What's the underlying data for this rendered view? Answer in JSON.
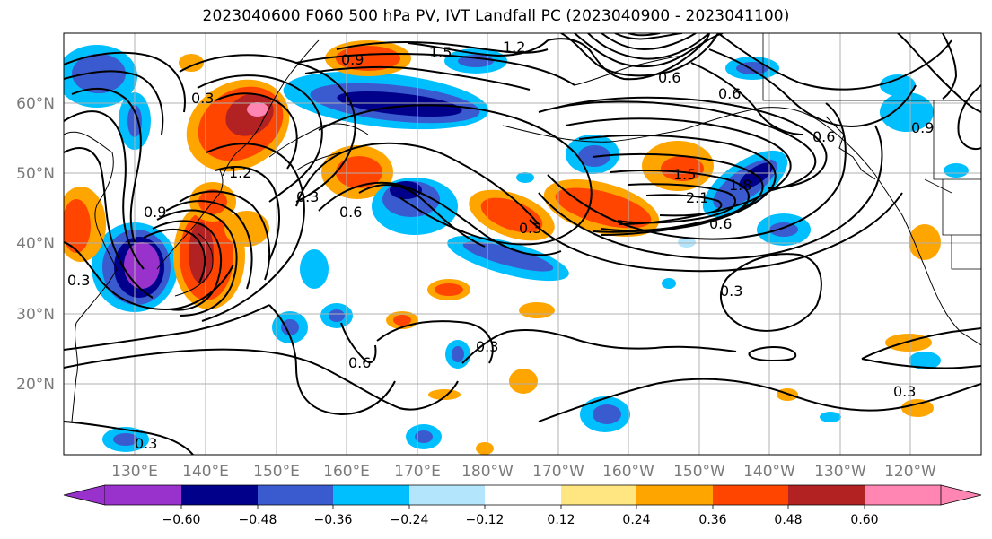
{
  "title": "2023040600 F060 500 hPa PV, IVT Landfall PC (2023040900 - 2023041100)",
  "colors": {
    "-0.72": "#9932CC",
    "-0.6": "#00008B",
    "-0.48": "#3A5BD0",
    "-0.36": "#00BFFF",
    "-0.24": "#B3E5FC",
    "-0.12": "#FFFFFF",
    "0.12": "#FFE680",
    "0.24": "#FFA500",
    "0.36": "#FF4500",
    "0.48": "#B22222",
    "0.6": "#FF85B3"
  },
  "map": {
    "lat_labels": [
      "60°N",
      "50°N",
      "40°N",
      "30°N",
      "20°N"
    ],
    "lon_labels": [
      "130°E",
      "140°E",
      "150°E",
      "160°E",
      "170°E",
      "180°W",
      "170°W",
      "160°W",
      "150°W",
      "140°W",
      "130°W",
      "120°W"
    ],
    "contour_labels": [
      "0.9",
      "1.5",
      "1.2",
      "0.6",
      "0.3",
      "0.9",
      "0.3",
      "1.2",
      "0.6",
      "0.3",
      "0.6",
      "0.3",
      "1.5",
      "2.1",
      "0.6",
      "1.8",
      "0.3",
      "0.3",
      "0.6",
      "0.3",
      "0.9",
      "0.3",
      "0.6"
    ]
  },
  "colorbar": {
    "tick_labels": [
      "−0.60",
      "−0.48",
      "−0.36",
      "−0.24",
      "−0.12",
      "0.12",
      "0.24",
      "0.36",
      "0.48",
      "0.60"
    ]
  }
}
